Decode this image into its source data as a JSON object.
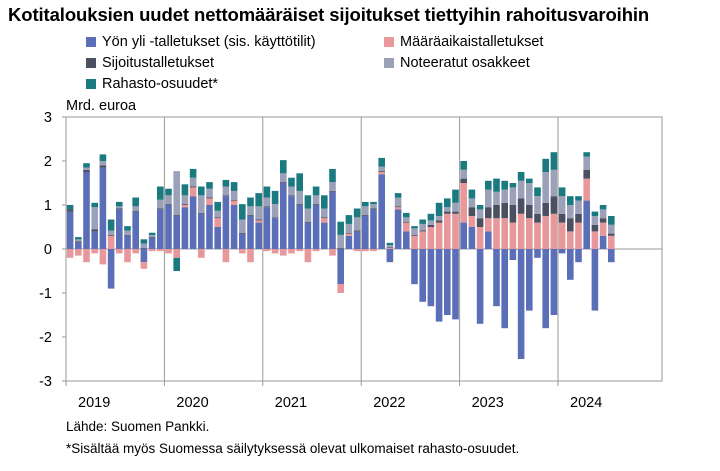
{
  "title": "Kotitalouksien uudet nettomääräiset sijoitukset tiettyihin rahoitusvaroihin",
  "source": "Lähde: Suomen Pankki.",
  "footnote": "*Sisältää myös Suomessa säilytyksessä olevat ulkomaiset rahasto-osuudet.",
  "chart_data": {
    "type": "bar",
    "stacked": true,
    "title": "Kotitalouksien uudet nettomääräiset sijoitukset tiettyihin rahoitusvaroihin",
    "ylabel": "Mrd. euroa",
    "xlabel": "",
    "ylim": [
      -3,
      3
    ],
    "yticks": [
      3,
      2,
      1,
      0,
      -1,
      -2,
      -3
    ],
    "year_labels": [
      "2019",
      "2020",
      "2021",
      "2022",
      "2023",
      "2024"
    ],
    "categories": [
      "2019-01",
      "2019-02",
      "2019-03",
      "2019-04",
      "2019-05",
      "2019-06",
      "2019-07",
      "2019-08",
      "2019-09",
      "2019-10",
      "2019-11",
      "2019-12",
      "2020-01",
      "2020-02",
      "2020-03",
      "2020-04",
      "2020-05",
      "2020-06",
      "2020-07",
      "2020-08",
      "2020-09",
      "2020-10",
      "2020-11",
      "2020-12",
      "2021-01",
      "2021-02",
      "2021-03",
      "2021-04",
      "2021-05",
      "2021-06",
      "2021-07",
      "2021-08",
      "2021-09",
      "2021-10",
      "2021-11",
      "2021-12",
      "2022-01",
      "2022-02",
      "2022-03",
      "2022-04",
      "2022-05",
      "2022-06",
      "2022-07",
      "2022-08",
      "2022-09",
      "2022-10",
      "2022-11",
      "2022-12",
      "2023-01",
      "2023-02",
      "2023-03",
      "2023-04",
      "2023-05",
      "2023-06",
      "2023-07",
      "2023-08",
      "2023-09",
      "2023-10",
      "2023-11",
      "2023-12",
      "2024-01",
      "2024-02",
      "2024-03",
      "2024-04",
      "2024-05",
      "2024-06",
      "2024-07",
      "2024-08",
      "2024-09"
    ],
    "legend": [
      {
        "name": "Yön yli -talletukset (sis. käyttötilit)",
        "color": "#5b6fb8"
      },
      {
        "name": "Määräaikaistalletukset",
        "color": "#e8979a"
      },
      {
        "name": "Sijoitustalletukset",
        "color": "#4a5060"
      },
      {
        "name": "Noteeratut osakkeet",
        "color": "#9aa1b9"
      },
      {
        "name": "Rahasto-osuudet*",
        "color": "#1a7a80"
      }
    ],
    "series": [
      {
        "name": "Yön yli -talletukset (sis. käyttötilit)",
        "color": "#5b6fb8",
        "values": [
          0.85,
          0.15,
          1.75,
          0.4,
          1.85,
          -0.9,
          0.9,
          0.3,
          0.85,
          -0.3,
          0.25,
          0.9,
          1.0,
          0.75,
          0.95,
          1.2,
          0.8,
          1.0,
          0.5,
          1.2,
          1.0,
          0.35,
          0.75,
          0.6,
          0.95,
          0.7,
          1.5,
          1.2,
          1.0,
          0.6,
          1.0,
          0.6,
          1.3,
          -0.8,
          0.3,
          0.4,
          0.75,
          0.9,
          1.7,
          -0.3,
          0.9,
          0.4,
          -0.8,
          -1.2,
          -1.3,
          -1.65,
          -1.5,
          -1.6,
          0.6,
          0.5,
          -1.7,
          0.4,
          -1.3,
          -1.8,
          -0.25,
          -2.5,
          -1.4,
          -0.2,
          -1.8,
          -1.5,
          -0.1,
          -0.7,
          -0.3,
          1.1,
          -1.4,
          0.3,
          -0.3,
          0,
          0
        ]
      },
      {
        "name": "Määräaikaistalletukset",
        "color": "#e8979a",
        "values": [
          -0.2,
          -0.15,
          -0.3,
          -0.1,
          -0.35,
          0.3,
          -0.1,
          -0.3,
          -0.1,
          -0.15,
          -0.05,
          -0.05,
          -0.1,
          -0.2,
          0.05,
          0.2,
          -0.2,
          0.15,
          0.2,
          -0.3,
          0.1,
          -0.1,
          -0.3,
          0.05,
          -0.05,
          -0.1,
          -0.15,
          -0.1,
          -0.05,
          -0.3,
          -0.05,
          0.1,
          -0.15,
          -0.2,
          0.05,
          -0.05,
          -0.05,
          -0.05,
          0.05,
          0.02,
          0.05,
          0.2,
          0.3,
          0.4,
          0.5,
          0.6,
          0.8,
          0.8,
          0.9,
          0.25,
          0.5,
          0.3,
          0.7,
          0.7,
          0.6,
          0.8,
          0.7,
          0.6,
          0.75,
          0.8,
          0.6,
          0.4,
          0.6,
          0.5,
          0.4,
          0.3,
          0.3,
          0,
          0
        ]
      },
      {
        "name": "Sijoitustalletukset",
        "color": "#4a5060",
        "values": [
          0.05,
          0.02,
          0.05,
          0.05,
          0.05,
          0.02,
          0.02,
          0.02,
          0.02,
          0.02,
          0.02,
          0.02,
          0.02,
          0.02,
          0.02,
          0.02,
          0.02,
          0.02,
          0.02,
          0.02,
          0.02,
          0.02,
          0.02,
          0.02,
          0.02,
          0.02,
          0.02,
          0.02,
          0.02,
          0.02,
          0.02,
          0.02,
          0.02,
          0.02,
          0.02,
          0.02,
          0.02,
          0.02,
          0.02,
          0.02,
          0.02,
          0.02,
          0.02,
          0.02,
          0.05,
          0.05,
          0.05,
          0.05,
          0.1,
          0.2,
          0.2,
          0.25,
          0.3,
          0.35,
          0.4,
          0.35,
          0.3,
          0.2,
          0.3,
          0.4,
          0.2,
          0.3,
          0.2,
          0.2,
          0.15,
          0.1,
          0.05,
          0,
          0
        ]
      },
      {
        "name": "Noteeratut osakkeet",
        "color": "#9aa1b9",
        "values": [
          0,
          0.05,
          0.05,
          0.5,
          0.1,
          0.1,
          0.05,
          0.1,
          0.1,
          0.1,
          0.05,
          0.2,
          0.2,
          1.0,
          0.2,
          0.2,
          0.4,
          0.2,
          0.15,
          0.2,
          0.2,
          0.3,
          0.2,
          0.3,
          0.2,
          0.3,
          0.2,
          0.2,
          0.3,
          0.3,
          0.2,
          0.2,
          0.2,
          0.3,
          0.2,
          0.3,
          0.2,
          0.1,
          0.1,
          0.05,
          0.2,
          0.1,
          0.15,
          0.15,
          0.1,
          0.1,
          0.1,
          0.2,
          0.2,
          0.2,
          0.2,
          0.4,
          0.3,
          0.3,
          0.4,
          0.4,
          0.5,
          0.4,
          0.7,
          0.6,
          0.4,
          0.3,
          0.3,
          0.3,
          0.2,
          0.2,
          0.2,
          0,
          0
        ]
      },
      {
        "name": "Rahasto-osuudet*",
        "color": "#1a7a80",
        "values": [
          0.1,
          0.05,
          0.1,
          0.1,
          0.15,
          0.25,
          0.1,
          0.1,
          0.2,
          0.1,
          0.05,
          0.3,
          0.15,
          -0.3,
          0.25,
          0.2,
          0.2,
          0.15,
          0.2,
          0.15,
          0.2,
          0.35,
          0.2,
          0.3,
          0.25,
          0.3,
          0.3,
          0.2,
          0.4,
          0.3,
          0.2,
          0.3,
          0.3,
          0.3,
          0.2,
          0.2,
          0.1,
          0.05,
          0.2,
          0.05,
          0.1,
          0.1,
          0.05,
          0.1,
          0.15,
          0.3,
          0.2,
          0.3,
          0.2,
          0.2,
          0.1,
          0.2,
          0.3,
          0.2,
          0.1,
          0.2,
          0.1,
          0.2,
          0.3,
          0.4,
          0.2,
          0.2,
          0.1,
          0.1,
          0.1,
          0.1,
          0.2,
          0,
          0
        ]
      }
    ],
    "grid": false,
    "legend_placement": "top"
  }
}
